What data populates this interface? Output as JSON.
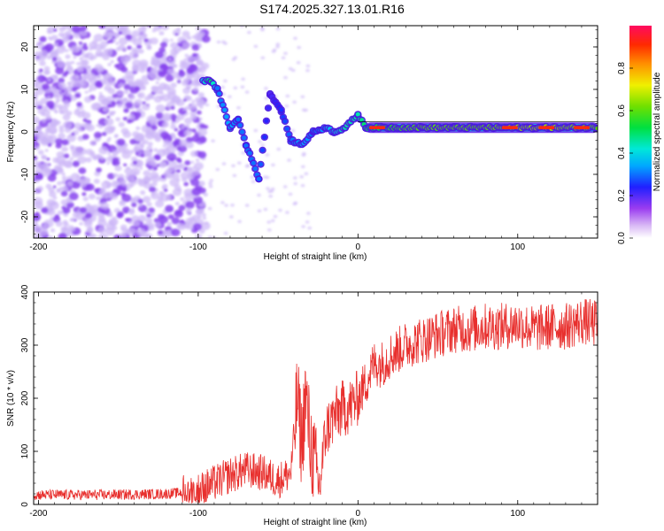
{
  "title": "S174.2025.327.13.01.R16",
  "chart_data": [
    {
      "type": "heatmap",
      "id": "spectrogram",
      "xlabel": "Height of straight line (km)",
      "ylabel": "Frequency (Hz)",
      "xlim": [
        -203,
        150
      ],
      "ylim": [
        -25,
        25
      ],
      "x_ticks": [
        -200,
        -100,
        0,
        100
      ],
      "y_ticks": [
        -20,
        -10,
        0,
        10,
        20
      ],
      "x_tick_labels": [
        "-200",
        "-100",
        "0",
        "100"
      ],
      "y_tick_labels": [
        "-20",
        "-10",
        "0",
        "10",
        "20"
      ],
      "noise_region_km": [
        -203,
        -95
      ],
      "signal_trace": [
        {
          "x": -97,
          "y": 12,
          "amp": 0.4
        },
        {
          "x": -92,
          "y": 12,
          "amp": 0.5
        },
        {
          "x": -88,
          "y": 10,
          "amp": 0.3
        },
        {
          "x": -80,
          "y": 1,
          "amp": 0.35
        },
        {
          "x": -75,
          "y": 3,
          "amp": 0.3
        },
        {
          "x": -70,
          "y": -3,
          "amp": 0.3
        },
        {
          "x": -62,
          "y": -11,
          "amp": 0.3
        },
        {
          "x": -55,
          "y": 9,
          "amp": 0.2
        },
        {
          "x": -48,
          "y": 5,
          "amp": 0.25
        },
        {
          "x": -42,
          "y": -2,
          "amp": 0.3
        },
        {
          "x": -35,
          "y": -3,
          "amp": 0.35
        },
        {
          "x": -28,
          "y": 0,
          "amp": 0.3
        },
        {
          "x": -20,
          "y": 1,
          "amp": 0.35
        },
        {
          "x": -15,
          "y": 0,
          "amp": 0.4
        },
        {
          "x": -8,
          "y": 1,
          "amp": 0.45
        },
        {
          "x": 0,
          "y": 4,
          "amp": 0.45
        },
        {
          "x": 5,
          "y": 1,
          "amp": 0.5
        },
        {
          "x": 20,
          "y": 1,
          "amp": 0.55
        },
        {
          "x": 40,
          "y": 1,
          "amp": 0.6
        },
        {
          "x": 60,
          "y": 1,
          "amp": 0.6
        },
        {
          "x": 80,
          "y": 1,
          "amp": 0.6
        },
        {
          "x": 100,
          "y": 1,
          "amp": 0.65
        },
        {
          "x": 120,
          "y": 1,
          "amp": 0.65
        },
        {
          "x": 150,
          "y": 1,
          "amp": 0.6
        }
      ],
      "colorbar": {
        "label": "Normalized spectral amplitude",
        "range": [
          0,
          1
        ],
        "ticks": [
          0.0,
          0.2,
          0.4,
          0.6,
          0.8
        ],
        "tick_labels": [
          "0.0",
          "0.2",
          "0.4",
          "0.6",
          "0.8"
        ]
      }
    },
    {
      "type": "line",
      "id": "snr",
      "xlabel": "Height of straight line (km)",
      "ylabel": "SNR (10 * v/v)",
      "xlim": [
        -203,
        150
      ],
      "ylim": [
        0,
        400
      ],
      "x_ticks": [
        -200,
        -100,
        0,
        100
      ],
      "y_ticks": [
        0,
        100,
        200,
        300,
        400
      ],
      "x_tick_labels": [
        "-200",
        "-100",
        "0",
        "100"
      ],
      "y_tick_labels": [
        "0",
        "100",
        "200",
        "300",
        "400"
      ],
      "series": [
        {
          "name": "SNR",
          "color": "#e8302e",
          "x": [
            -200,
            -180,
            -160,
            -140,
            -120,
            -100,
            -90,
            -80,
            -70,
            -60,
            -50,
            -42,
            -38,
            -35,
            -33,
            -30,
            -27,
            -24,
            -22,
            -20,
            -15,
            -10,
            -5,
            0,
            5,
            10,
            15,
            20,
            30,
            40,
            50,
            60,
            70,
            80,
            90,
            100,
            110,
            120,
            130,
            140,
            150
          ],
          "y": [
            18,
            18,
            18,
            19,
            20,
            25,
            40,
            55,
            65,
            60,
            45,
            60,
            200,
            110,
            210,
            120,
            70,
            30,
            90,
            140,
            165,
            180,
            185,
            200,
            230,
            265,
            265,
            280,
            300,
            310,
            320,
            330,
            330,
            335,
            335,
            340,
            330,
            335,
            335,
            345,
            340
          ]
        }
      ]
    }
  ],
  "colors": {
    "noise": "#8844ee",
    "noise_light": "#ccb6f6",
    "snr_line": "#e8302e"
  }
}
